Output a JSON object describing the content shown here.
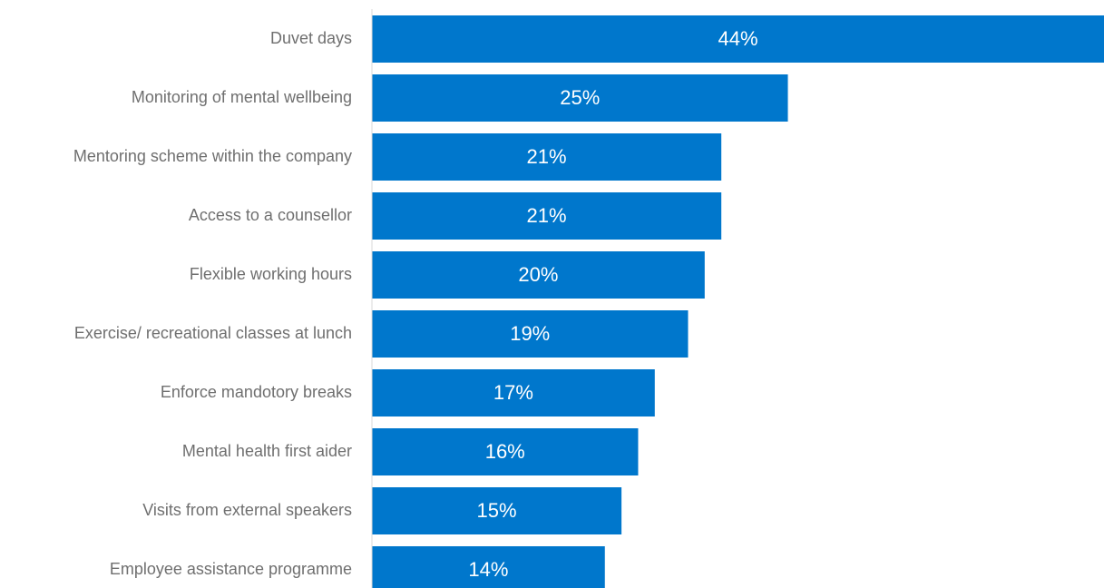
{
  "chart_data": {
    "type": "bar",
    "orientation": "horizontal",
    "categories": [
      "Duvet days",
      "Monitoring of mental wellbeing",
      "Mentoring scheme within the company",
      "Access to a counsellor",
      "Flexible working hours",
      "Exercise/ recreational classes at lunch",
      "Enforce mandotory breaks",
      "Mental health first aider",
      "Visits from external speakers",
      "Employee assistance programme"
    ],
    "values": [
      44,
      25,
      21,
      21,
      20,
      19,
      17,
      16,
      15,
      14
    ],
    "value_labels": [
      "44%",
      "25%",
      "21%",
      "21%",
      "20%",
      "19%",
      "17%",
      "16%",
      "15%",
      "14%"
    ],
    "xlim": [
      0,
      44
    ],
    "grid": false,
    "legend": "none",
    "bar_color": "#0077cc"
  }
}
